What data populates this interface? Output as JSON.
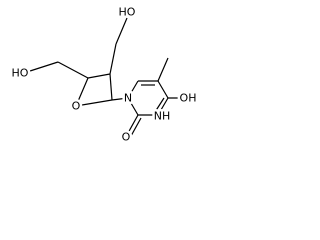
{
  "atoms": {
    "hydroxyl_top": "HO",
    "hydroxyl_left": "HO",
    "ring_oxygen": "O",
    "n1": "N",
    "carbonyl_oxygen": "O",
    "n3": "NH",
    "hydroxyl_right": "OH"
  }
}
